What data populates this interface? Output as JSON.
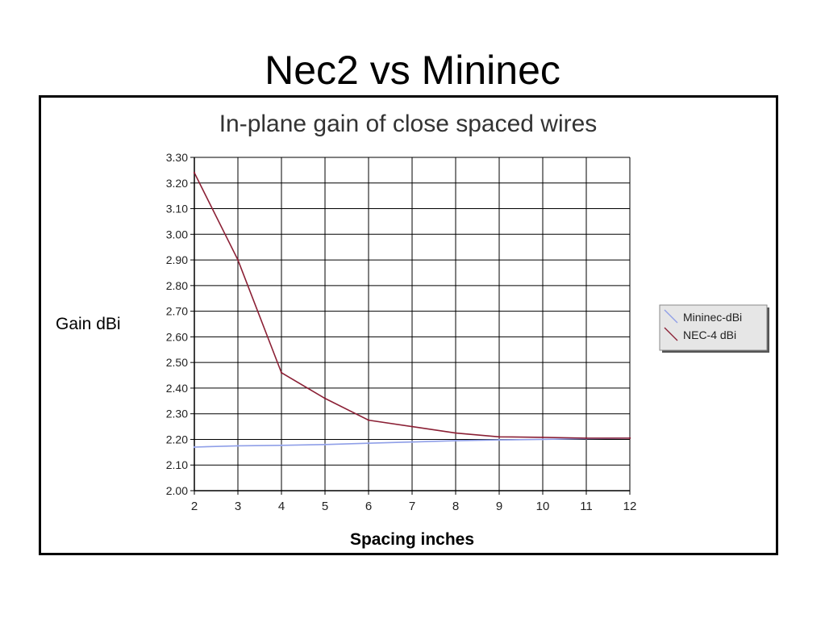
{
  "slide": {
    "title": "Nec2 vs Mininec"
  },
  "chart_data": {
    "type": "line",
    "title": "In-plane gain of close spaced wires",
    "xlabel": "Spacing inches",
    "ylabel": "Gain dBi",
    "xlim": [
      2,
      12
    ],
    "ylim": [
      2.0,
      3.3
    ],
    "x_ticks": [
      "2",
      "3",
      "4",
      "5",
      "6",
      "7",
      "8",
      "9",
      "10",
      "11",
      "12"
    ],
    "y_ticks": [
      "2.00",
      "2.10",
      "2.20",
      "2.30",
      "2.40",
      "2.50",
      "2.60",
      "2.70",
      "2.80",
      "2.90",
      "3.00",
      "3.10",
      "3.20",
      "3.30"
    ],
    "grid": true,
    "legend_position": "right",
    "series": [
      {
        "name": "Mininec-dBi",
        "color": "#8f9fe8",
        "x": [
          2,
          3,
          4,
          5,
          6,
          7,
          8,
          9,
          10,
          11,
          12
        ],
        "y": [
          2.17,
          2.175,
          2.177,
          2.18,
          2.185,
          2.19,
          2.195,
          2.198,
          2.2,
          2.203,
          2.205
        ]
      },
      {
        "name": "NEC-4 dBi",
        "color": "#8b2035",
        "x": [
          2,
          3,
          4,
          5,
          6,
          7,
          8,
          9,
          10,
          11,
          12
        ],
        "y": [
          3.24,
          2.9,
          2.46,
          2.36,
          2.275,
          2.25,
          2.225,
          2.21,
          2.208,
          2.205,
          2.205
        ]
      }
    ]
  }
}
